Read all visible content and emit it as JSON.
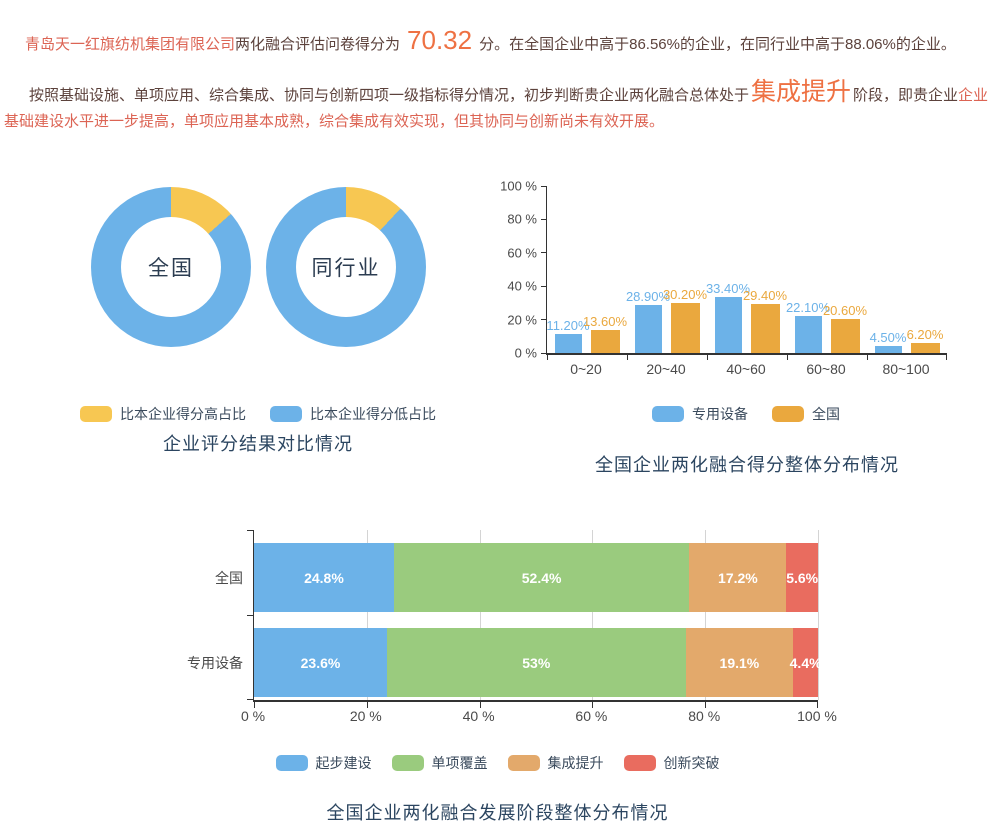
{
  "header": {
    "company": "青岛天一红旗纺机集团有限公司",
    "score_prefix": "两化融合评估问卷得分为",
    "score": "70.32",
    "score_suffix": "分。在全国企业中高于86.56%的企业，在同行业中高于88.06%的企业。",
    "para2_lead": "按照基础设施、单项应用、综合集成、协同与创新四项一级指标得分情况，初步判断贵企业两化融合总体处于",
    "stage": "集成提升",
    "para2_mid": "阶段，即贵企业",
    "para2_tail": "企业基础建设水平进一步提高，单项应用基本成熟，综合集成有效实现，但其协同与创新尚未有效开展。"
  },
  "colors": {
    "body_text": "#5c423c",
    "highlight_red": "#dc6454",
    "big_orange": "#ee7143",
    "title_navy": "#2b4560",
    "blue": "#6cb2e8",
    "pie_yellow": "#f7c752",
    "bar_orange": "#eaa83e",
    "green": "#9acb7e",
    "stack_orange": "#e3a96b",
    "stack_red": "#e96c5f"
  },
  "chart_data": [
    {
      "type": "pie",
      "title": "企业评分结果对比情况",
      "legend": [
        {
          "label": "比本企业得分高占比",
          "color": "#f7c752"
        },
        {
          "label": "比本企业得分低占比",
          "color": "#6cb2e8"
        }
      ],
      "donuts": [
        {
          "label": "全国",
          "higher_pct": 13.44,
          "lower_pct": 86.56
        },
        {
          "label": "同行业",
          "higher_pct": 11.94,
          "lower_pct": 88.06
        }
      ]
    },
    {
      "type": "bar",
      "title": "全国企业两化融合得分整体分布情况",
      "categories": [
        "0~20",
        "20~40",
        "40~60",
        "60~80",
        "80~100"
      ],
      "series": [
        {
          "name": "专用设备",
          "color": "#6cb2e8",
          "values": [
            11.2,
            28.9,
            33.4,
            22.1,
            4.5
          ],
          "labels": [
            "11.20%",
            "28.90%",
            "33.40%",
            "22.10%",
            "4.50%"
          ]
        },
        {
          "name": "全国",
          "color": "#eaa83e",
          "values": [
            13.6,
            30.2,
            29.4,
            20.6,
            6.2
          ],
          "labels": [
            "13.60%",
            "30.20%",
            "29.40%",
            "20.60%",
            "6.20%"
          ]
        }
      ],
      "y_ticks": [
        "100 %",
        "80 %",
        "60 %",
        "40 %",
        "20 %",
        "0 %"
      ],
      "ylim": [
        0,
        100
      ],
      "legend_position": "bottom"
    },
    {
      "type": "stacked-bar",
      "title": "全国企业两化融合发展阶段整体分布情况",
      "segments": [
        {
          "name": "起步建设",
          "color": "#6cb2e8"
        },
        {
          "name": "单项覆盖",
          "color": "#9acb7e"
        },
        {
          "name": "集成提升",
          "color": "#e3a96b"
        },
        {
          "name": "创新突破",
          "color": "#e96c5f"
        }
      ],
      "rows": [
        {
          "label": "全国",
          "values": [
            24.8,
            52.4,
            17.2,
            5.6
          ],
          "labels": [
            "24.8%",
            "52.4%",
            "17.2%",
            "5.6%"
          ]
        },
        {
          "label": "专用设备",
          "values": [
            23.6,
            53,
            19.1,
            4.4
          ],
          "labels": [
            "23.6%",
            "53%",
            "19.1%",
            "4.4%"
          ]
        }
      ],
      "x_ticks": [
        "0 %",
        "20 %",
        "40 %",
        "60 %",
        "80 %",
        "100 %"
      ],
      "xlim": [
        0,
        100
      ],
      "legend_position": "bottom"
    }
  ]
}
